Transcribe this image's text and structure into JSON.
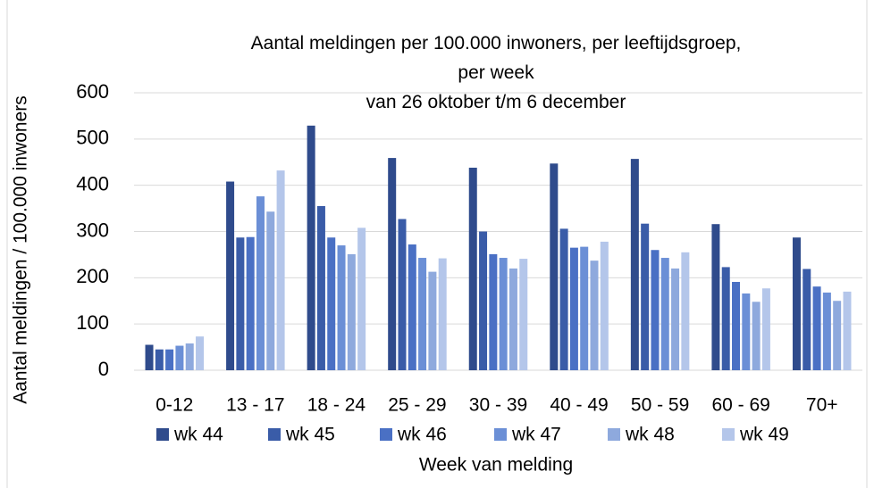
{
  "chart_data": {
    "type": "bar",
    "title": "Aantal meldingen per 100.000 inwoners, per leeftijdsgroep, per week",
    "subtitle": "van 26 oktober t/m 6 december",
    "x_label": "Week van melding",
    "y_label": "Aantal meldingen / 100.000 inwoners",
    "categories": [
      "0-12",
      "13 - 17",
      "18 - 24",
      "25 - 29",
      "30 - 39",
      "40 - 49",
      "50 - 59",
      "60 - 69",
      "70+"
    ],
    "series": [
      {
        "name": "wk 44",
        "color": "#2f4b8c",
        "values": [
          55,
          408,
          529,
          459,
          438,
          447,
          457,
          316,
          287
        ]
      },
      {
        "name": "wk 45",
        "color": "#3a5ca8",
        "values": [
          45,
          287,
          355,
          327,
          300,
          306,
          317,
          223,
          219
        ]
      },
      {
        "name": "wk 46",
        "color": "#4a70c4",
        "values": [
          45,
          288,
          287,
          272,
          251,
          265,
          260,
          191,
          181
        ]
      },
      {
        "name": "wk 47",
        "color": "#6b8fd6",
        "values": [
          53,
          376,
          270,
          243,
          243,
          267,
          243,
          166,
          168
        ]
      },
      {
        "name": "wk 48",
        "color": "#8ea9dd",
        "values": [
          58,
          343,
          251,
          213,
          220,
          237,
          220,
          148,
          150
        ]
      },
      {
        "name": "wk 49",
        "color": "#b4c6ea",
        "values": [
          73,
          432,
          308,
          242,
          241,
          278,
          255,
          177,
          170
        ]
      }
    ],
    "ylim": [
      0,
      600
    ],
    "yticks": [
      0,
      100,
      200,
      300,
      400,
      500,
      600
    ],
    "grid": true,
    "legend": "bottom"
  }
}
